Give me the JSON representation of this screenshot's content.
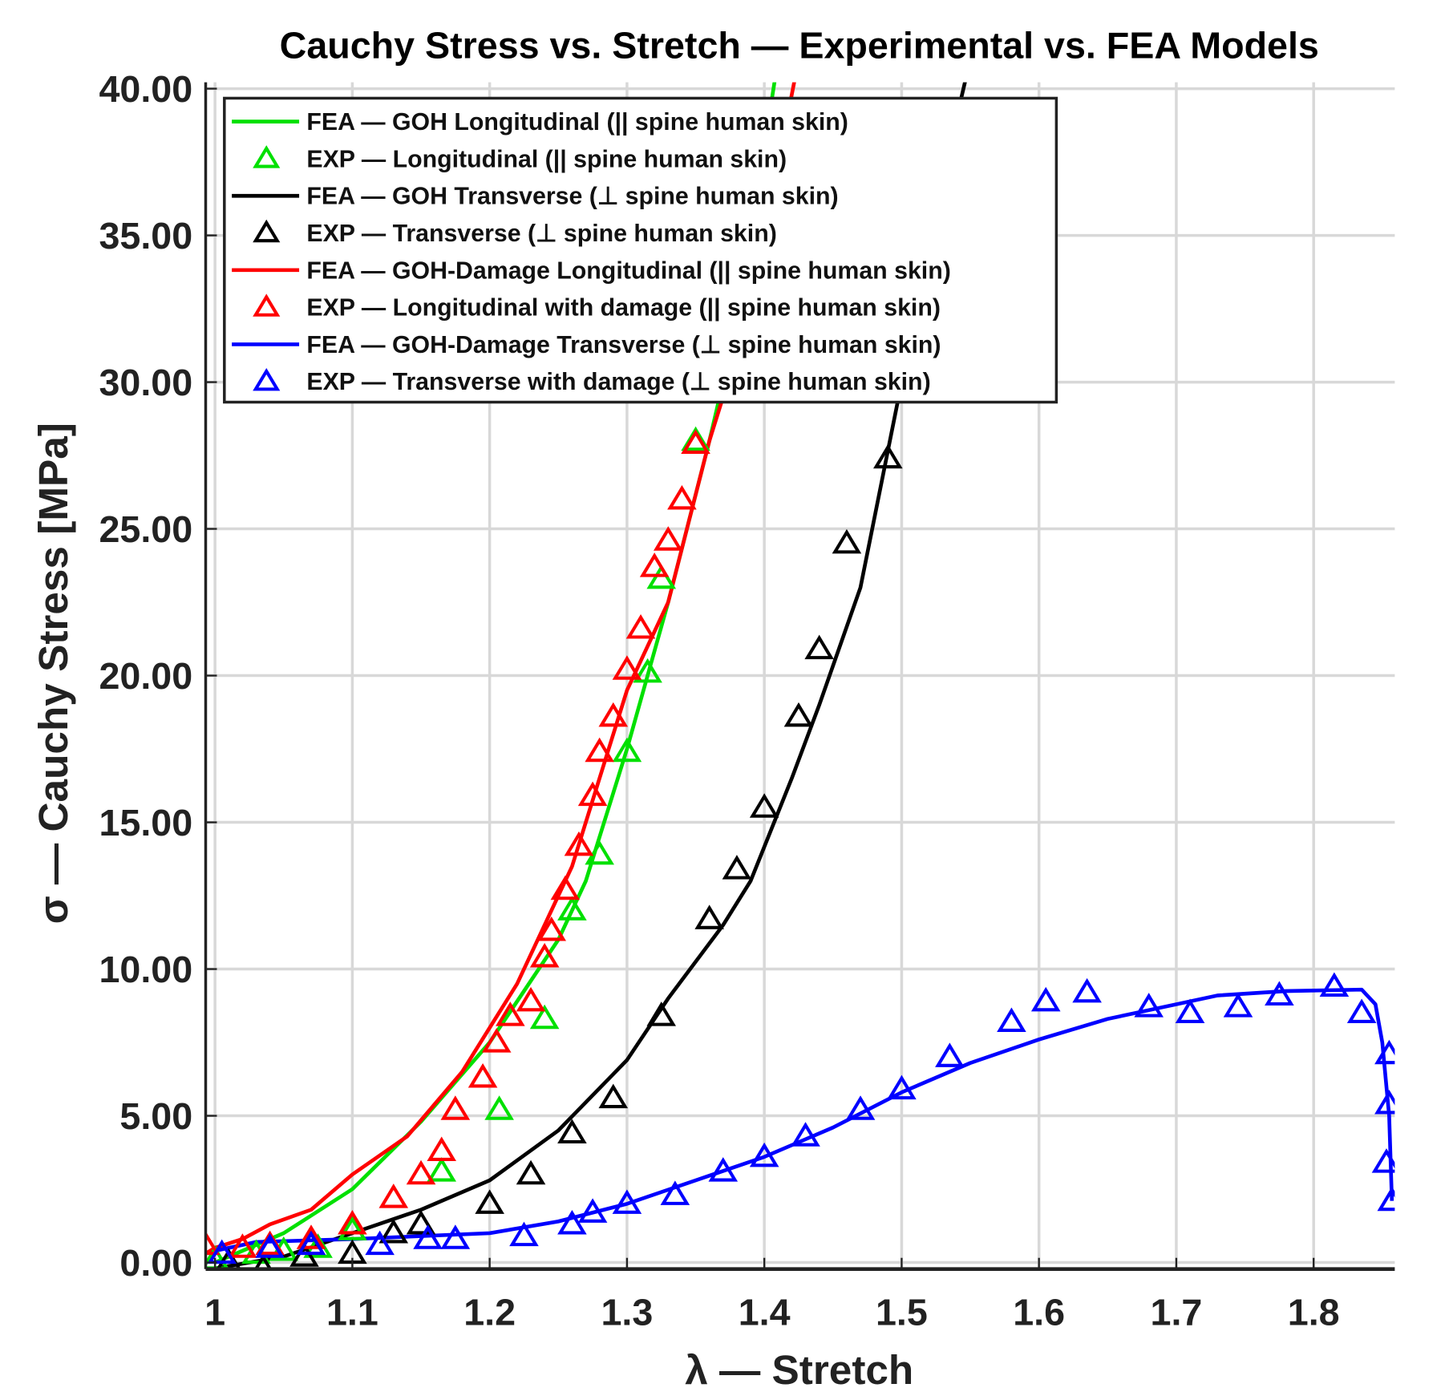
{
  "chart_data": {
    "type": "line",
    "title": "Cauchy Stress vs. Stretch — Experimental vs. FEA Models",
    "xlabel": "λ — Stretch",
    "ylabel": "σ — Cauchy Stress [MPa]",
    "xlim": [
      0.993,
      1.859
    ],
    "ylim": [
      0,
      40
    ],
    "xticks": [
      1,
      1.1,
      1.2,
      1.3,
      1.4,
      1.5,
      1.6,
      1.7,
      1.8
    ],
    "xtick_labels": [
      "1",
      "1.1",
      "1.2",
      "1.3",
      "1.4",
      "1.5",
      "1.6",
      "1.7",
      "1.8"
    ],
    "yticks": [
      0,
      5,
      10,
      15,
      20,
      25,
      30,
      35,
      40
    ],
    "ytick_labels": [
      "0.00",
      "5.00",
      "10.00",
      "15.00",
      "20.00",
      "25.00",
      "30.00",
      "35.00",
      "40.00"
    ],
    "grid": true,
    "legend_position": "top-left",
    "series": [
      {
        "name": "FEA — GOH Longitudinal (|| spine human skin)",
        "kind": "line",
        "color": "#00e000",
        "x": [
          1.0,
          1.05,
          1.1,
          1.15,
          1.2,
          1.25,
          1.27,
          1.3,
          1.33,
          1.36,
          1.375,
          1.39,
          1.41
        ],
        "y": [
          0,
          1.0,
          2.5,
          4.8,
          7.5,
          11.0,
          13.0,
          17.5,
          22.5,
          28.0,
          31.0,
          35.0,
          41.0
        ]
      },
      {
        "name": "EXP — Longitudinal (|| spine human skin)",
        "kind": "marker",
        "color": "#00e000",
        "x": [
          1.0,
          1.03,
          1.05,
          1.075,
          1.1,
          1.165,
          1.207,
          1.24,
          1.26,
          1.28,
          1.3,
          1.315,
          1.325,
          1.35
        ],
        "y": [
          0.1,
          0.3,
          0.4,
          0.5,
          1.1,
          3.1,
          5.2,
          8.3,
          12.0,
          13.9,
          17.4,
          20.1,
          23.3,
          28.0
        ]
      },
      {
        "name": "FEA — GOH Transverse (⊥ spine human skin)",
        "kind": "line",
        "color": "#000000",
        "x": [
          1.0,
          1.05,
          1.1,
          1.15,
          1.2,
          1.25,
          1.3,
          1.33,
          1.37,
          1.39,
          1.42,
          1.44,
          1.47,
          1.5,
          1.52,
          1.55
        ],
        "y": [
          -0.2,
          0.2,
          1.0,
          1.8,
          2.8,
          4.5,
          6.9,
          9.0,
          11.5,
          13.0,
          16.5,
          19.0,
          23.0,
          30.0,
          35.0,
          41.0
        ]
      },
      {
        "name": "EXP — Transverse (⊥ spine human skin)",
        "kind": "marker",
        "color": "#000000",
        "x": [
          1.01,
          1.035,
          1.065,
          1.1,
          1.13,
          1.15,
          1.2,
          1.23,
          1.26,
          1.29,
          1.325,
          1.36,
          1.38,
          1.4,
          1.425,
          1.44,
          1.46,
          1.49
        ],
        "y": [
          0,
          -0.2,
          0.2,
          0.3,
          1.0,
          1.3,
          2.0,
          3.0,
          4.4,
          5.6,
          8.4,
          11.7,
          13.4,
          15.5,
          18.6,
          20.9,
          24.5,
          27.4
        ]
      },
      {
        "name": "FEA — GOH-Damage Longitudinal (|| spine human skin)",
        "kind": "line",
        "color": "#ff0000",
        "x": [
          0.993,
          1.0,
          1.02,
          1.04,
          1.07,
          1.1,
          1.14,
          1.18,
          1.22,
          1.26,
          1.3,
          1.33,
          1.36,
          1.38,
          1.4,
          1.425
        ],
        "y": [
          0.3,
          0.5,
          0.8,
          1.3,
          1.8,
          3.0,
          4.3,
          6.5,
          9.5,
          13.5,
          19.5,
          22.5,
          28.0,
          31.0,
          35.0,
          41.0
        ]
      },
      {
        "name": "EXP — Longitudinal with damage (|| spine human skin)",
        "kind": "marker",
        "color": "#ff0000",
        "x": [
          0.993,
          1.02,
          1.04,
          1.07,
          1.1,
          1.13,
          1.15,
          1.165,
          1.175,
          1.195,
          1.205,
          1.215,
          1.23,
          1.24,
          1.245,
          1.255,
          1.265,
          1.275,
          1.28,
          1.29,
          1.3,
          1.31,
          1.32,
          1.33,
          1.34,
          1.35
        ],
        "y": [
          0.6,
          0.5,
          0.6,
          0.8,
          1.3,
          2.2,
          3.0,
          3.8,
          5.2,
          6.3,
          7.5,
          8.4,
          8.9,
          10.4,
          11.3,
          12.7,
          14.2,
          15.9,
          17.4,
          18.6,
          20.2,
          21.6,
          23.7,
          24.6,
          26.0,
          27.9
        ]
      },
      {
        "name": "FEA — GOH-Damage Transverse (⊥ spine human skin)",
        "kind": "line",
        "color": "#0000ff",
        "x": [
          1.0,
          1.03,
          1.1,
          1.2,
          1.25,
          1.3,
          1.35,
          1.4,
          1.45,
          1.5,
          1.55,
          1.6,
          1.65,
          1.7,
          1.73,
          1.78,
          1.835,
          1.845,
          1.85,
          1.855,
          1.857
        ],
        "y": [
          0.4,
          0.7,
          0.8,
          1.0,
          1.4,
          2.0,
          2.8,
          3.6,
          4.6,
          5.8,
          6.8,
          7.6,
          8.3,
          8.8,
          9.1,
          9.25,
          9.3,
          8.8,
          7.5,
          5.0,
          2.1
        ]
      },
      {
        "name": "EXP — Transverse with damage (⊥ spine human skin)",
        "kind": "marker",
        "color": "#0000ff",
        "x": [
          1.005,
          1.04,
          1.07,
          1.12,
          1.155,
          1.175,
          1.225,
          1.26,
          1.275,
          1.3,
          1.335,
          1.37,
          1.4,
          1.43,
          1.47,
          1.5,
          1.535,
          1.58,
          1.605,
          1.635,
          1.68,
          1.71,
          1.745,
          1.775,
          1.815,
          1.835,
          1.855,
          1.855,
          1.853,
          1.857
        ],
        "y": [
          0.3,
          0.5,
          0.6,
          0.6,
          0.8,
          0.8,
          0.9,
          1.3,
          1.7,
          2.0,
          2.3,
          3.1,
          3.6,
          4.3,
          5.2,
          5.9,
          7.0,
          8.2,
          8.9,
          9.2,
          8.7,
          8.5,
          8.7,
          9.1,
          9.4,
          8.5,
          7.1,
          5.4,
          3.4,
          2.1
        ]
      }
    ]
  }
}
